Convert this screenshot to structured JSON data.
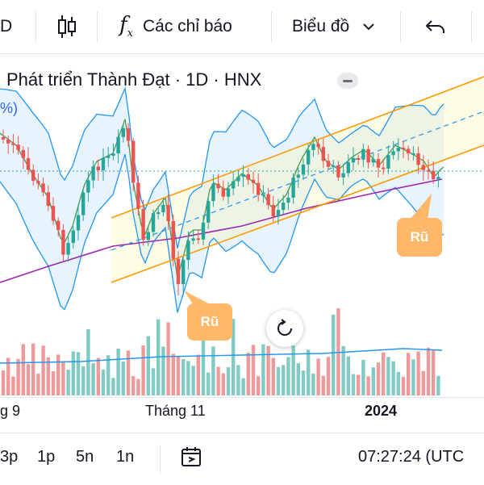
{
  "toolbar": {
    "interval_fragment": "D",
    "indicators_label": "Các chỉ báo",
    "chart_type_label": "Biểu đồ"
  },
  "chart": {
    "title": "Phát triển Thành Đạt · 1D · HNX",
    "legend_fragment": "%)",
    "annotations": [
      "Rũ",
      "Rũ"
    ],
    "colors": {
      "up": "#26a69a",
      "down": "#ef5350",
      "bollinger": "#2196f3",
      "ma_green": "#43a047",
      "ma_purple": "#9c27b0",
      "channel": "#ff9800",
      "bubble": "#ffb86a"
    }
  },
  "x_axis": {
    "labels": [
      "g 9",
      "Tháng 11",
      "2024"
    ]
  },
  "bottom_bar": {
    "ranges": [
      "3p",
      "1p",
      "5n",
      "1n"
    ],
    "time": "07:27:24 (UTC"
  },
  "chart_data": {
    "type": "candlestick",
    "title": "Phát triển Thành Đạt · 1D · HNX",
    "x_labels": [
      "g 9",
      "Tháng 11",
      "2024"
    ],
    "series": [
      {
        "name": "price",
        "values": []
      },
      {
        "name": "volume",
        "values": []
      }
    ]
  }
}
